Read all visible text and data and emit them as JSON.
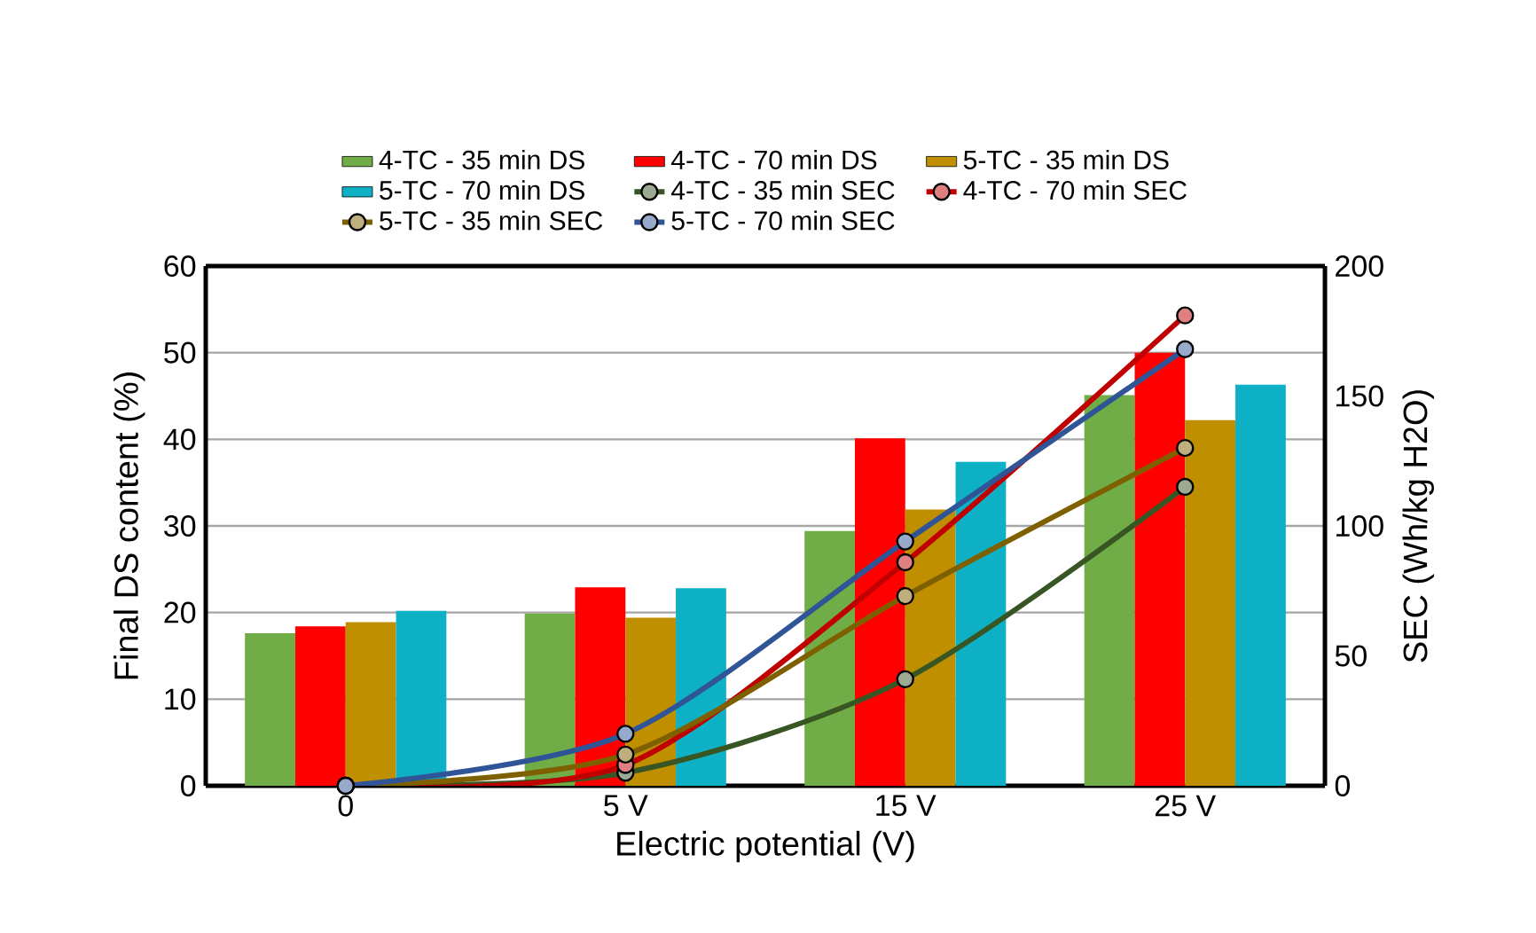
{
  "chart_data": {
    "type": "bar",
    "xlabel": "Electric potential (V)",
    "ylabel": "Final DS content (%)",
    "y2label": "SEC (Wh/kg H2O)",
    "categories": [
      "0",
      "5 V",
      "15 V",
      "25 V"
    ],
    "ylim": [
      0,
      60
    ],
    "yticks": [
      0,
      10,
      20,
      30,
      40,
      50,
      60
    ],
    "y2lim": [
      0,
      200
    ],
    "y2ticks": [
      0,
      50,
      100,
      150,
      200
    ],
    "grid": "y",
    "legend": "top",
    "marker": "circle",
    "line_style": "solid",
    "series": [
      {
        "name": "4-TC - 35 min DS",
        "color": "#70ad47",
        "values": [
          17.6,
          19.9,
          29.4,
          45.1
        ]
      },
      {
        "name": "4-TC - 70 min DS",
        "color": "#ff0000",
        "values": [
          18.4,
          22.9,
          40.1,
          50.0
        ]
      },
      {
        "name": "5-TC - 35 min DS",
        "color": "#bf8f00",
        "values": [
          18.9,
          19.4,
          31.9,
          42.2
        ]
      },
      {
        "name": "5-TC - 70 min DS",
        "color": "#0eb0c6",
        "values": [
          20.2,
          22.8,
          37.4,
          46.3
        ]
      },
      {
        "name": "4-TC - 35 min SEC",
        "type": "line",
        "axis": "y2",
        "color": "#375623",
        "values": [
          0,
          5,
          41,
          115
        ]
      },
      {
        "name": "4-TC - 70 min SEC",
        "type": "line",
        "axis": "y2",
        "color": "#c00000",
        "values": [
          0,
          8,
          86,
          181
        ]
      },
      {
        "name": "5-TC - 35 min SEC",
        "type": "line",
        "axis": "y2",
        "color": "#7f6000",
        "values": [
          0,
          12,
          73,
          130
        ]
      },
      {
        "name": "5-TC - 70 min SEC",
        "type": "line",
        "axis": "y2",
        "color": "#2f5597",
        "values": [
          0,
          20,
          94,
          168
        ]
      }
    ]
  }
}
